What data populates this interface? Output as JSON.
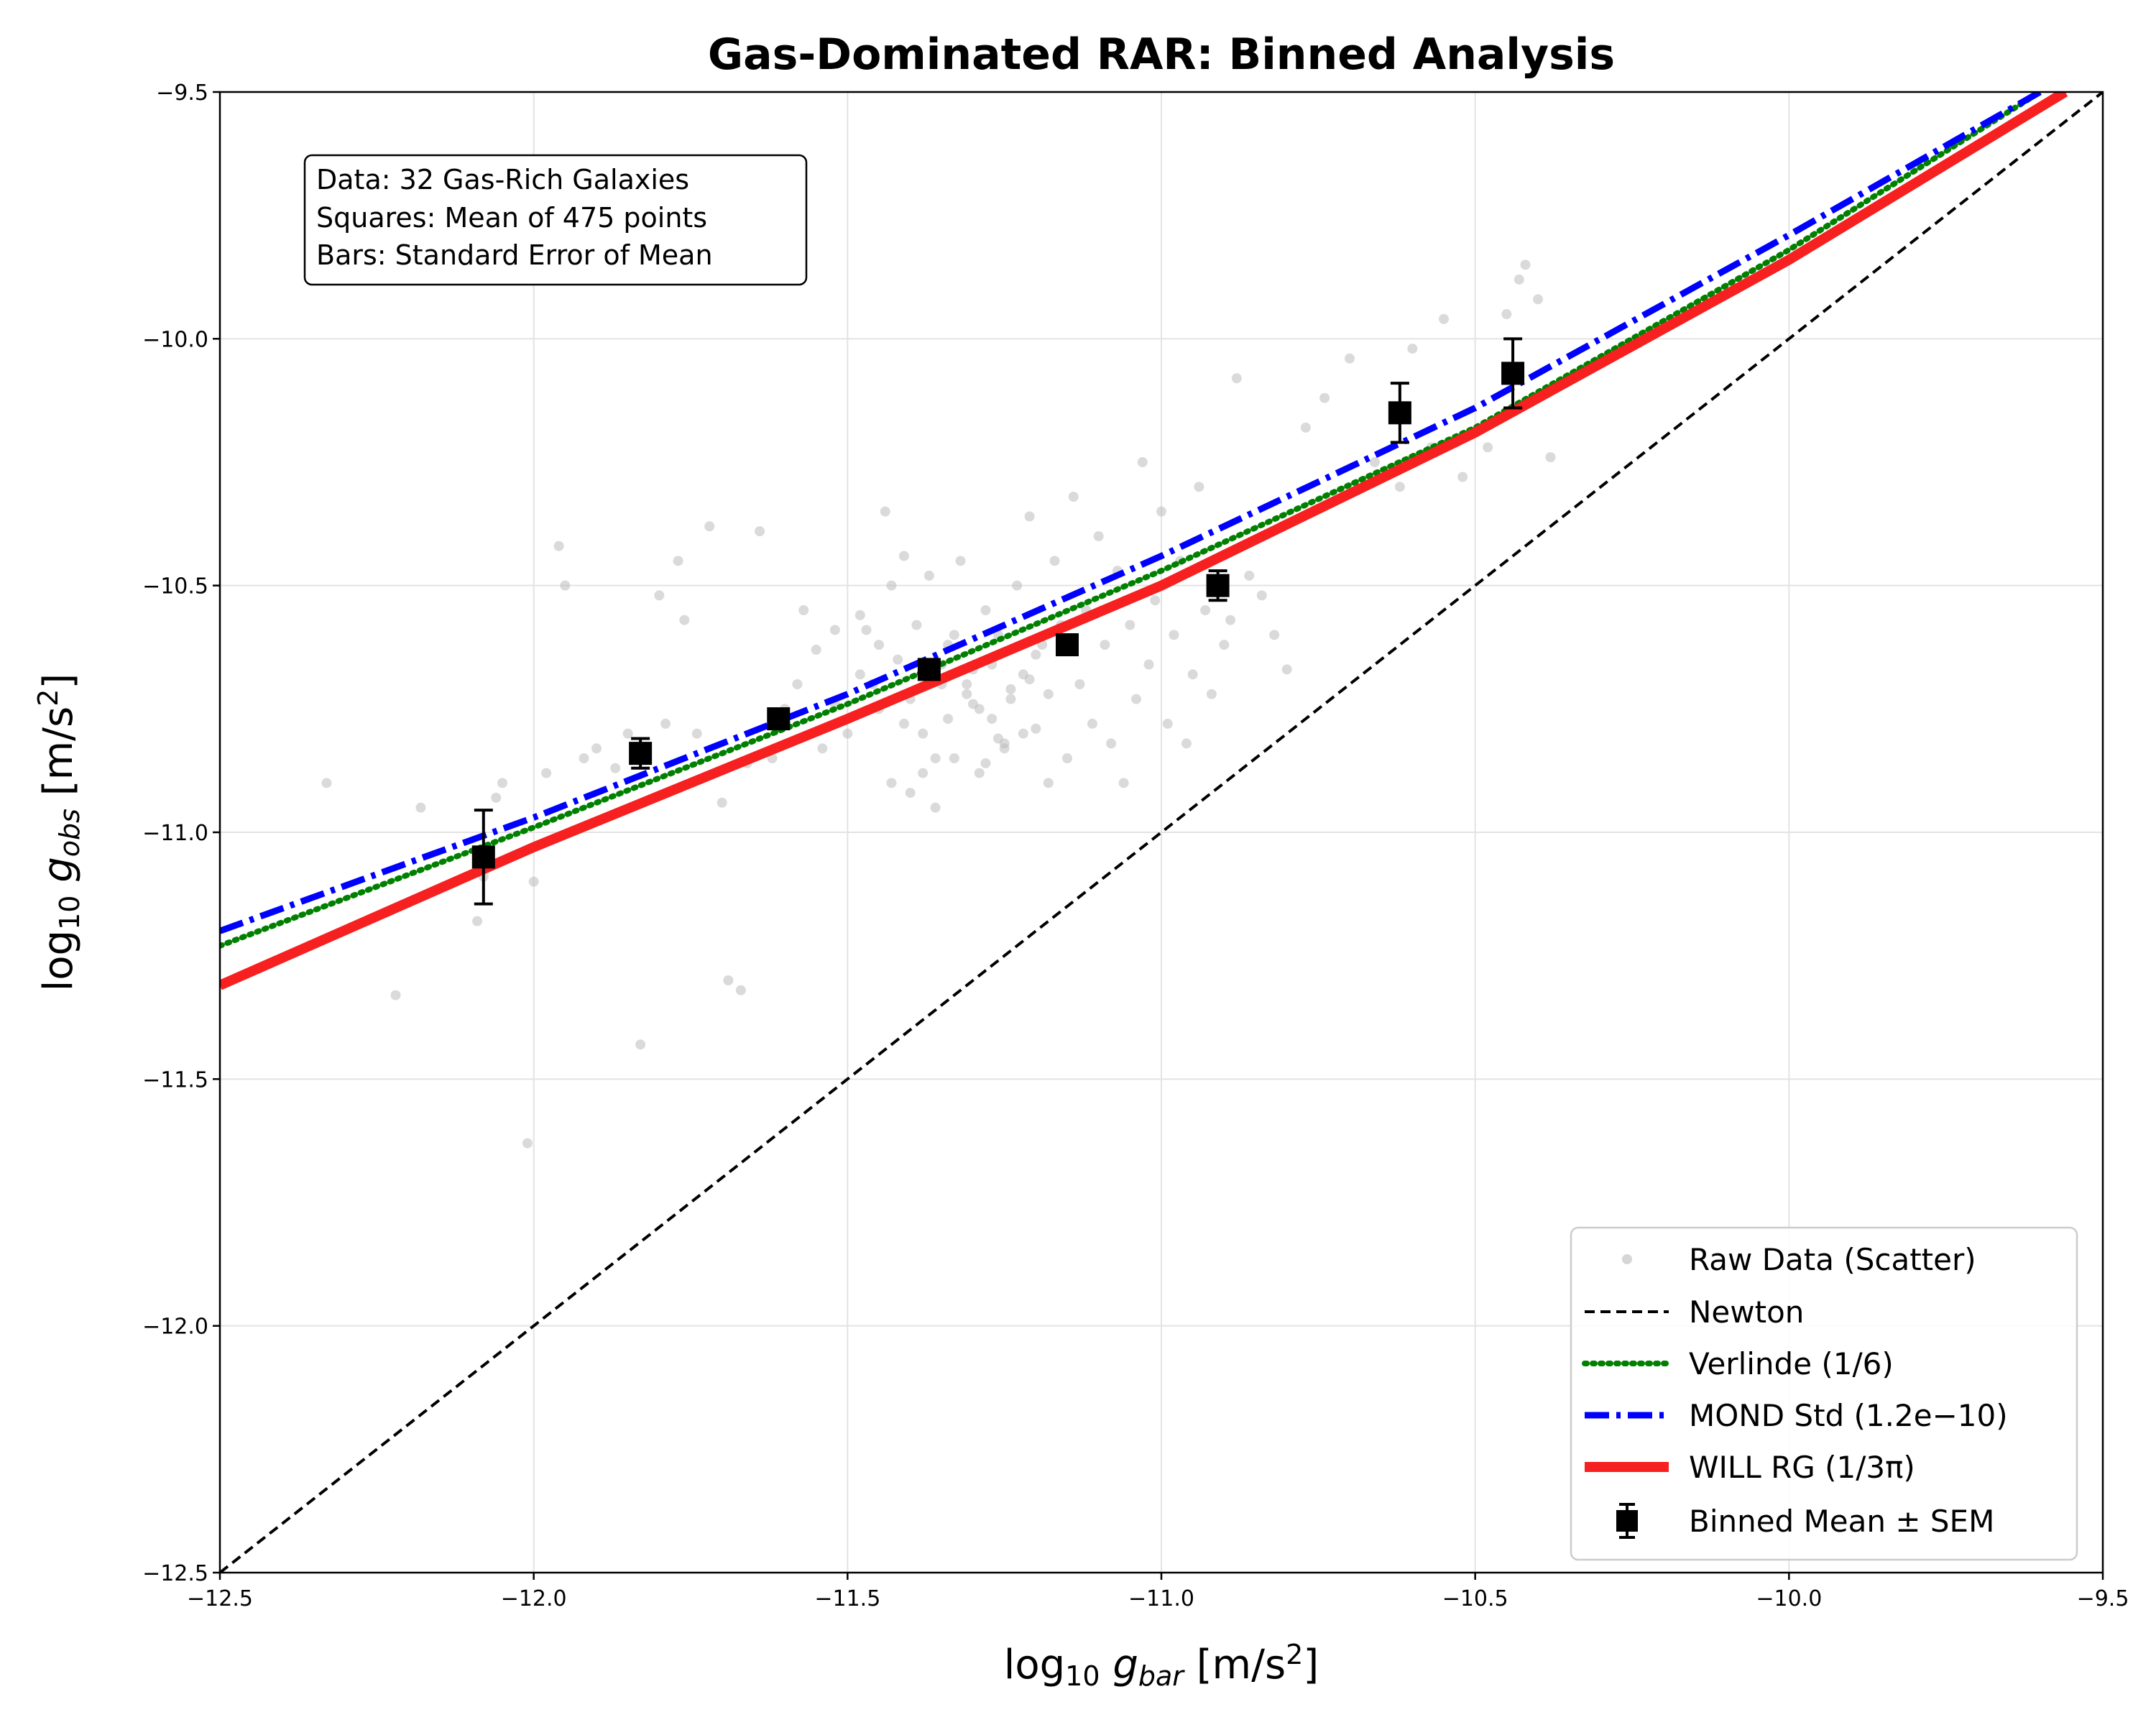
{
  "chart_data": {
    "type": "scatter",
    "title": "Gas-Dominated RAR: Binned Analysis",
    "xlabel": "log10 g_bar [m/s^2]",
    "ylabel": "log10 g_obs [m/s^2]",
    "xlim": [
      -12.5,
      -9.5
    ],
    "ylim": [
      -12.5,
      -9.5
    ],
    "xticks": [
      -12.5,
      -12.0,
      -11.5,
      -11.0,
      -10.5,
      -10.0,
      -9.5
    ],
    "yticks": [
      -12.5,
      -12.0,
      -11.5,
      -11.0,
      -10.5,
      -10.0,
      -9.5
    ],
    "xtick_labels": [
      "−12.5",
      "−12.0",
      "−11.5",
      "−11.0",
      "−10.5",
      "−10.0",
      "−9.5"
    ],
    "ytick_labels": [
      "−12.5",
      "−12.0",
      "−11.5",
      "−11.0",
      "−10.5",
      "−10.0",
      "−9.5"
    ],
    "grid": true,
    "legend_position": "bottom-right",
    "annotation": [
      "Data: 32 Gas-Rich Galaxies",
      "Squares: Mean of 475 points",
      "Bars: Standard Error of Mean"
    ],
    "series": [
      {
        "name": "Raw Data (Scatter)",
        "kind": "scatter",
        "color": "#bbbbbb",
        "x": [
          -12.33,
          -12.22,
          -12.18,
          -12.09,
          -12.08,
          -12.06,
          -12.05,
          -12.01,
          -12.0,
          -11.98,
          -11.96,
          -11.95,
          -11.92,
          -11.9,
          -11.87,
          -11.85,
          -11.83,
          -11.8,
          -11.79,
          -11.77,
          -11.76,
          -11.74,
          -11.72,
          -11.7,
          -11.69,
          -11.67,
          -11.66,
          -11.64,
          -11.62,
          -11.6,
          -11.58,
          -11.57,
          -11.55,
          -11.54,
          -11.52,
          -11.5,
          -11.48,
          -11.47,
          -11.45,
          -11.44,
          -11.43,
          -11.42,
          -11.41,
          -11.4,
          -11.39,
          -11.38,
          -11.37,
          -11.36,
          -11.35,
          -11.34,
          -11.33,
          -11.32,
          -11.31,
          -11.3,
          -11.29,
          -11.28,
          -11.27,
          -11.26,
          -11.25,
          -11.24,
          -11.23,
          -11.22,
          -11.21,
          -11.2,
          -11.19,
          -11.18,
          -11.17,
          -11.16,
          -11.15,
          -11.14,
          -11.13,
          -11.12,
          -11.11,
          -11.1,
          -11.09,
          -11.08,
          -11.07,
          -11.06,
          -11.05,
          -11.04,
          -11.03,
          -11.02,
          -11.01,
          -11.0,
          -10.99,
          -10.98,
          -10.97,
          -10.96,
          -10.95,
          -10.94,
          -10.93,
          -10.92,
          -10.91,
          -10.9,
          -10.89,
          -10.88,
          -10.86,
          -10.84,
          -10.82,
          -10.8,
          -10.77,
          -10.74,
          -10.7,
          -10.66,
          -10.62,
          -10.6,
          -10.57,
          -10.55,
          -10.52,
          -10.48,
          -10.45,
          -10.43,
          -10.42,
          -10.4,
          -10.38,
          -11.45,
          -11.41,
          -11.36,
          -11.31,
          -11.27,
          -11.22,
          -11.18,
          -11.43,
          -11.38,
          -11.33,
          -11.29,
          -11.25,
          -11.21,
          -11.48,
          -11.4,
          -11.35,
          -11.3,
          -11.26,
          -11.2,
          -11.52,
          -11.46,
          -11.34,
          -11.28,
          -11.24
        ],
        "y": [
          -10.9,
          -11.33,
          -10.95,
          -11.18,
          -11.09,
          -10.93,
          -10.9,
          -11.63,
          -11.1,
          -10.88,
          -10.42,
          -10.5,
          -10.85,
          -10.83,
          -10.87,
          -10.8,
          -11.43,
          -10.52,
          -10.78,
          -10.45,
          -10.57,
          -10.8,
          -10.38,
          -10.94,
          -11.3,
          -11.32,
          -10.86,
          -10.39,
          -10.85,
          -10.75,
          -10.7,
          -10.55,
          -10.63,
          -10.83,
          -10.74,
          -10.8,
          -10.68,
          -10.59,
          -10.75,
          -10.35,
          -10.9,
          -10.65,
          -10.44,
          -10.73,
          -10.58,
          -10.8,
          -10.48,
          -10.95,
          -10.7,
          -10.62,
          -10.85,
          -10.45,
          -10.72,
          -10.67,
          -10.88,
          -10.55,
          -10.77,
          -10.6,
          -10.83,
          -10.71,
          -10.5,
          -10.68,
          -10.36,
          -10.79,
          -10.62,
          -10.9,
          -10.45,
          -10.58,
          -10.85,
          -10.32,
          -10.7,
          -10.55,
          -10.78,
          -10.4,
          -10.62,
          -10.82,
          -10.47,
          -10.9,
          -10.58,
          -10.73,
          -10.25,
          -10.66,
          -10.53,
          -10.35,
          -10.78,
          -10.6,
          -10.45,
          -10.82,
          -10.68,
          -10.3,
          -10.55,
          -10.72,
          -10.5,
          -10.62,
          -10.57,
          -10.08,
          -10.48,
          -10.52,
          -10.6,
          -10.67,
          -10.18,
          -10.12,
          -10.04,
          -10.25,
          -10.3,
          -10.02,
          -10.22,
          -9.96,
          -10.28,
          -10.22,
          -9.95,
          -9.88,
          -9.85,
          -9.92,
          -10.24,
          -10.62,
          -10.78,
          -10.85,
          -10.7,
          -10.66,
          -10.8,
          -10.72,
          -10.5,
          -10.88,
          -10.6,
          -10.75,
          -10.82,
          -10.69,
          -10.56,
          -10.92,
          -10.66,
          -10.74,
          -10.81,
          -10.64,
          -10.59,
          -10.7,
          -10.77,
          -10.86,
          -10.73
        ]
      },
      {
        "name": "Newton",
        "kind": "line",
        "style": "dashed",
        "color": "#000000",
        "x": [
          -12.5,
          -9.5
        ],
        "y": [
          -12.5,
          -9.5
        ]
      },
      {
        "name": "Verlinde (1/6)",
        "kind": "line",
        "style": "dotted",
        "color": "#008000",
        "x": [
          -12.5,
          -12.0,
          -11.5,
          -11.0,
          -10.5,
          -10.0,
          -9.6
        ],
        "y": [
          -11.23,
          -10.99,
          -10.74,
          -10.47,
          -10.18,
          -9.82,
          -9.5
        ]
      },
      {
        "name": "MOND Std (1.2e−10)",
        "kind": "line",
        "style": "dashdot",
        "color": "#0000ff",
        "x": [
          -12.5,
          -12.0,
          -11.5,
          -11.0,
          -10.5,
          -10.0,
          -9.6
        ],
        "y": [
          -11.2,
          -10.97,
          -10.72,
          -10.44,
          -10.14,
          -9.79,
          -9.5
        ]
      },
      {
        "name": "WILL RG (1/3π)",
        "kind": "line",
        "style": "solid",
        "color": "#f72020",
        "x": [
          -12.5,
          -12.0,
          -11.5,
          -11.0,
          -10.5,
          -10.0,
          -9.56
        ],
        "y": [
          -11.31,
          -11.03,
          -10.77,
          -10.5,
          -10.19,
          -9.84,
          -9.5
        ]
      },
      {
        "name": "Binned Mean ± SEM",
        "kind": "errorbar",
        "color": "#000000",
        "x": [
          -12.08,
          -11.83,
          -11.61,
          -11.37,
          -11.15,
          -10.91,
          -10.62,
          -10.44
        ],
        "y": [
          -11.05,
          -10.84,
          -10.77,
          -10.67,
          -10.62,
          -10.5,
          -10.15,
          -10.07
        ],
        "err": [
          0.095,
          0.03,
          0.02,
          0.02,
          0.02,
          0.03,
          0.06,
          0.07
        ]
      }
    ]
  }
}
